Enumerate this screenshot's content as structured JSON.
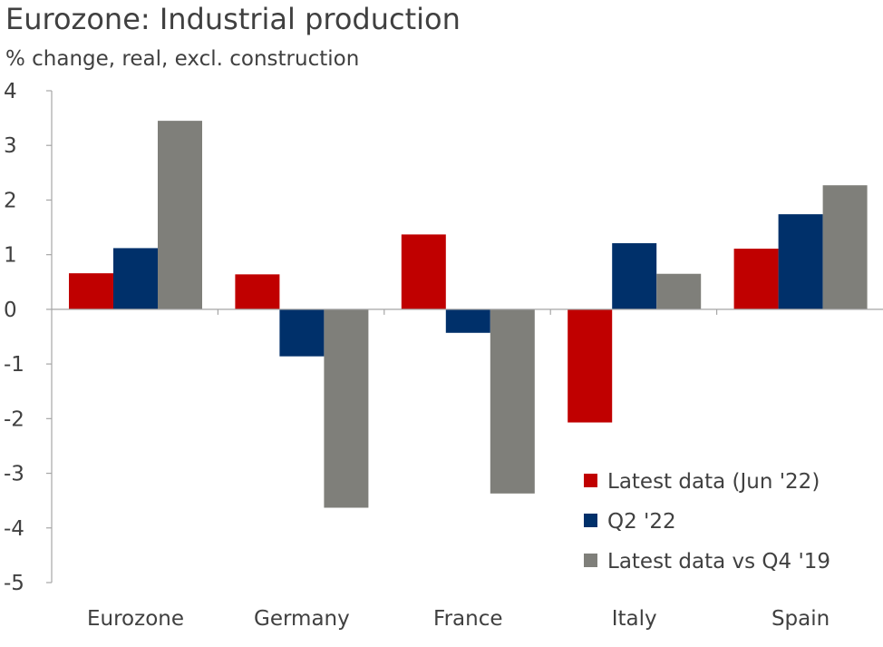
{
  "colors": {
    "latest": "#c00000",
    "q2": "#00306a",
    "vsq4": "#7f7f7a",
    "axis": "#a6a6a6"
  },
  "chart_data": {
    "type": "bar",
    "title": "Eurozone: Industrial production",
    "subtitle": "% change, real, excl. construction",
    "categories": [
      "Eurozone",
      "Germany",
      "France",
      "Italy",
      "Spain"
    ],
    "series": [
      {
        "name": "Latest data (Jun '22)",
        "values": [
          0.66,
          0.64,
          1.37,
          -2.07,
          1.11
        ]
      },
      {
        "name": "Q2 '22",
        "values": [
          1.12,
          -0.86,
          -0.43,
          1.21,
          1.74
        ]
      },
      {
        "name": "Latest data vs Q4 '19",
        "values": [
          3.45,
          -3.63,
          -3.37,
          0.65,
          2.27
        ]
      }
    ],
    "xlabel": "",
    "ylabel": "",
    "ylim": [
      -5,
      4
    ],
    "yticks": [
      "4",
      "3",
      "2",
      "1",
      "0",
      "-1",
      "-2",
      "-3",
      "-4",
      "-5"
    ],
    "grid": false,
    "legend_position": "bottom-right"
  }
}
